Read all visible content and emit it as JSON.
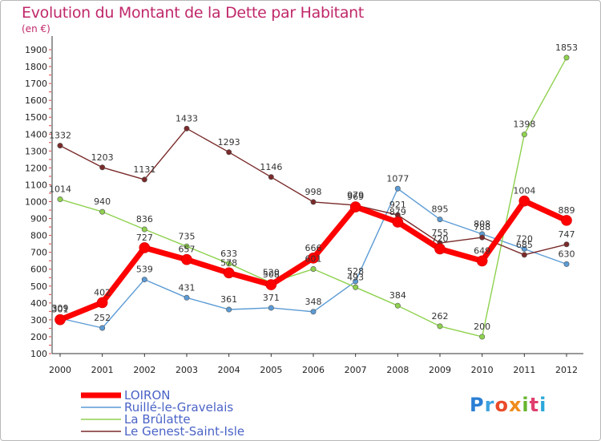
{
  "title": "Evolution du Montant de la Dette par Habitant",
  "subtitle": "(en €)",
  "logo": {
    "text": "Proxiti",
    "colors": [
      "#2a7fd4",
      "#3da3e0",
      "#e94b2a",
      "#f08c1c",
      "#67b52e",
      "#e03f6f",
      "#2aa7d9"
    ]
  },
  "chart_data": {
    "type": "line",
    "title": "Evolution du Montant de la Dette par Habitant",
    "ylabel": "(en €)",
    "x": [
      "2000",
      "2001",
      "2002",
      "2003",
      "2004",
      "2005",
      "2006",
      "2007",
      "2008",
      "2009",
      "2010",
      "2011",
      "2012"
    ],
    "ylim": [
      100,
      1900
    ],
    "yticks": [
      100,
      200,
      300,
      400,
      500,
      600,
      700,
      800,
      900,
      1000,
      1100,
      1200,
      1300,
      1400,
      1500,
      1600,
      1700,
      1800,
      1900
    ],
    "grid": false,
    "legend": "bottom-left",
    "series": [
      {
        "name": "LOIRON",
        "color": "#ff0000",
        "values": [
          301,
          402,
          727,
          657,
          578,
          508,
          666,
          969,
          879,
          720,
          649,
          1004,
          889
        ]
      },
      {
        "name": "Ruillé-le-Gravelais",
        "color": "#5b9bd5",
        "values": [
          309,
          252,
          539,
          431,
          361,
          371,
          348,
          528,
          1077,
          895,
          808,
          720,
          630
        ]
      },
      {
        "name": "La Brûlatte",
        "color": "#8fd14f",
        "values": [
          1014,
          940,
          836,
          735,
          633,
          520,
          601,
          493,
          384,
          262,
          200,
          1398,
          1853
        ]
      },
      {
        "name": "Le Genest-Saint-Isle",
        "color": "#7a2a2a",
        "values": [
          1332,
          1203,
          1131,
          1433,
          1293,
          1146,
          998,
          979,
          921,
          755,
          788,
          685,
          747
        ]
      }
    ]
  }
}
